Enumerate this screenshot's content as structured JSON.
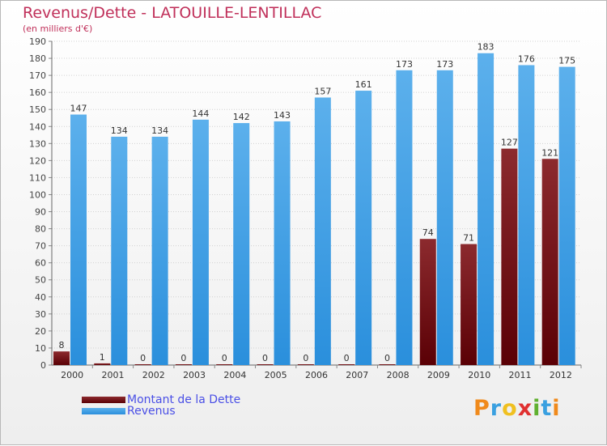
{
  "title": "Revenus/Dette - LATOUILLE-LENTILLAC",
  "subtitle": "(en milliers d'€)",
  "logo": "Proxiti",
  "colors": {
    "dette": "#7a1518",
    "revenus": "#3a9ee6",
    "title": "#c0305a",
    "legend_text": "#4a4fe6"
  },
  "chart_data": {
    "type": "bar",
    "title": "Revenus/Dette - LATOUILLE-LENTILLAC",
    "ylabel": "(en milliers d'€)",
    "xlabel": "",
    "categories": [
      "2000",
      "2001",
      "2002",
      "2003",
      "2004",
      "2005",
      "2006",
      "2007",
      "2008",
      "2009",
      "2010",
      "2011",
      "2012"
    ],
    "series": [
      {
        "name": "Montant de la Dette",
        "values": [
          8,
          1,
          0,
          0,
          0,
          0,
          0,
          0,
          0,
          74,
          71,
          127,
          121
        ]
      },
      {
        "name": "Revenus",
        "values": [
          147,
          134,
          134,
          144,
          142,
          143,
          157,
          161,
          173,
          173,
          183,
          176,
          175
        ]
      }
    ],
    "ylim": [
      0,
      190
    ],
    "ytick_step": 10,
    "grid": true,
    "legend_position": "bottom-left"
  }
}
